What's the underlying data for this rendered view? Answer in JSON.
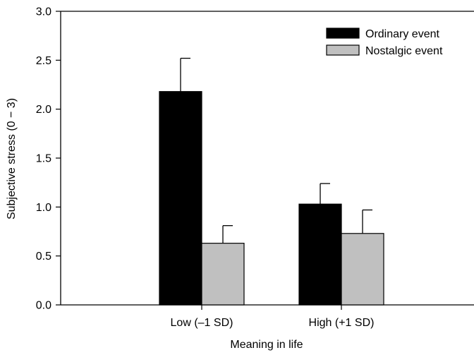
{
  "chart_data": {
    "type": "bar",
    "title": "",
    "xlabel": "Meaning in life",
    "ylabel": "Subjective stress (0 − 3)",
    "ylim": [
      0,
      3
    ],
    "yticks": [
      "0.0",
      "0.5",
      "1.0",
      "1.5",
      "2.0",
      "2.5",
      "3.0"
    ],
    "categories": [
      "Low (–1 SD)",
      "High (+1 SD)"
    ],
    "series": [
      {
        "name": "Ordinary event",
        "color": "#000000",
        "values": [
          2.18,
          1.03
        ],
        "error": [
          0.34,
          0.21
        ]
      },
      {
        "name": "Nostalgic event",
        "color": "#c0c0c0",
        "values": [
          0.63,
          0.73
        ],
        "error": [
          0.18,
          0.24
        ]
      }
    ],
    "legend_position": "top-right",
    "grid": false,
    "error_bars": "upper"
  }
}
